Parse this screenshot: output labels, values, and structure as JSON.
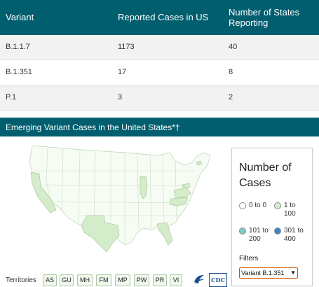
{
  "table": {
    "headers": [
      "Variant",
      "Reported Cases in US",
      "Number of States Reporting"
    ],
    "rows": [
      [
        "B.1.1.7",
        "1173",
        "40"
      ],
      [
        "B.1.351",
        "17",
        "8"
      ],
      [
        "P.1",
        "3",
        "2"
      ]
    ]
  },
  "map": {
    "title": "Emerging Variant Cases in the United States*†",
    "colors": {
      "zero": "#f6fcf3",
      "low": "#d4ecca",
      "mid": "#7ccbc5",
      "high": "#3d86c1",
      "border": "#b8d3b0"
    }
  },
  "legend": {
    "title": "Number of Cases",
    "items": [
      {
        "label": "0 to 0",
        "color": "#ffffff"
      },
      {
        "label": "1 to 100",
        "color": "#d4ecca"
      },
      {
        "label": "101 to 200",
        "color": "#7ccbc5"
      },
      {
        "label": "301 to 400",
        "color": "#3d86c1"
      }
    ],
    "filters_label": "Filters",
    "filter_value": "Variant B.1.351"
  },
  "territories": {
    "label": "Territories",
    "items": [
      "AS",
      "GU",
      "MH",
      "FM",
      "MP",
      "PW",
      "PR",
      "VI"
    ]
  },
  "logos": {
    "cdc": "CDC"
  }
}
